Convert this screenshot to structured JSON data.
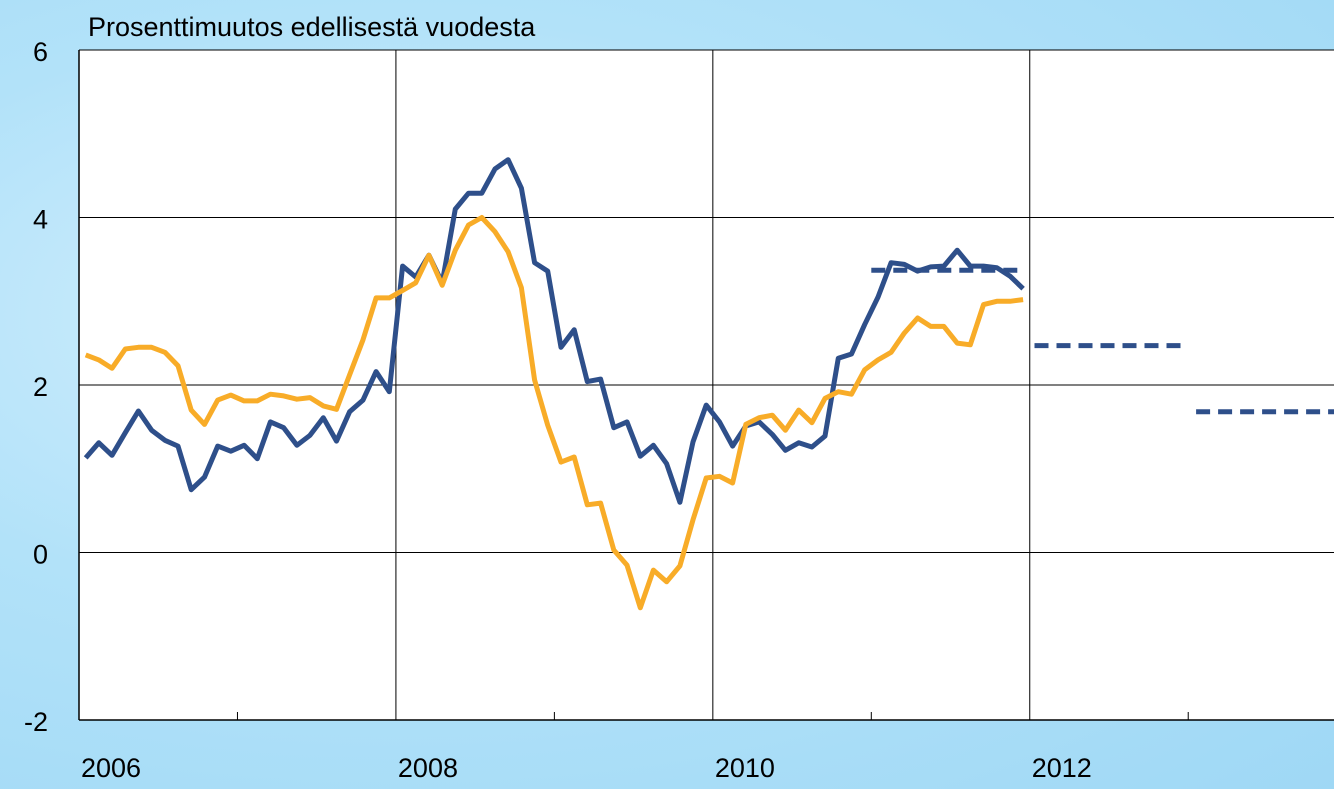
{
  "chart_data": {
    "type": "line",
    "title": "Prosenttimuutos edellisestä vuodesta",
    "x": [
      2006.042,
      2006.125,
      2006.208,
      2006.292,
      2006.375,
      2006.458,
      2006.542,
      2006.625,
      2006.708,
      2006.792,
      2006.875,
      2006.958,
      2007.042,
      2007.125,
      2007.208,
      2007.292,
      2007.375,
      2007.458,
      2007.542,
      2007.625,
      2007.708,
      2007.792,
      2007.875,
      2007.958,
      2008.042,
      2008.125,
      2008.208,
      2008.292,
      2008.375,
      2008.458,
      2008.542,
      2008.625,
      2008.708,
      2008.792,
      2008.875,
      2008.958,
      2009.042,
      2009.125,
      2009.208,
      2009.292,
      2009.375,
      2009.458,
      2009.542,
      2009.625,
      2009.708,
      2009.792,
      2009.875,
      2009.958,
      2010.042,
      2010.125,
      2010.208,
      2010.292,
      2010.375,
      2010.458,
      2010.542,
      2010.625,
      2010.708,
      2010.792,
      2010.875,
      2010.958,
      2011.042,
      2011.125,
      2011.208,
      2011.292,
      2011.375,
      2011.458,
      2011.542,
      2011.625,
      2011.708,
      2011.792,
      2011.875,
      2011.958
    ],
    "series": [
      {
        "color": "#2e4f8a",
        "style": "solid",
        "values": [
          1.13,
          1.31,
          1.16,
          1.43,
          1.69,
          1.46,
          1.34,
          1.27,
          0.75,
          0.9,
          1.27,
          1.21,
          1.28,
          1.12,
          1.56,
          1.49,
          1.28,
          1.4,
          1.61,
          1.33,
          1.68,
          1.82,
          2.16,
          1.92,
          3.42,
          3.29,
          3.55,
          3.22,
          4.1,
          4.29,
          4.29,
          4.58,
          4.69,
          4.35,
          3.46,
          3.36,
          2.45,
          2.66,
          2.04,
          2.07,
          1.49,
          1.56,
          1.15,
          1.28,
          1.06,
          0.6,
          1.32,
          1.76,
          1.56,
          1.27,
          1.51,
          1.56,
          1.41,
          1.22,
          1.31,
          1.26,
          1.39,
          2.32,
          2.37,
          2.72,
          3.05,
          3.46,
          3.44,
          3.36,
          3.41,
          3.42,
          3.61,
          3.42,
          3.42,
          3.4,
          3.3,
          3.15
        ]
      },
      {
        "color": "#f8ac28",
        "style": "solid",
        "values": [
          2.36,
          2.3,
          2.2,
          2.43,
          2.45,
          2.45,
          2.39,
          2.23,
          1.7,
          1.53,
          1.82,
          1.88,
          1.81,
          1.81,
          1.89,
          1.87,
          1.83,
          1.85,
          1.75,
          1.71,
          2.12,
          2.54,
          3.04,
          3.04,
          3.13,
          3.22,
          3.55,
          3.19,
          3.61,
          3.91,
          4.0,
          3.83,
          3.59,
          3.16,
          2.06,
          1.52,
          1.08,
          1.14,
          0.57,
          0.59,
          0.03,
          -0.15,
          -0.66,
          -0.21,
          -0.35,
          -0.16,
          0.39,
          0.89,
          0.91,
          0.83,
          1.53,
          1.61,
          1.64,
          1.46,
          1.7,
          1.55,
          1.84,
          1.92,
          1.89,
          2.18,
          2.3,
          2.39,
          2.62,
          2.8,
          2.7,
          2.7,
          2.5,
          2.48,
          2.96,
          3.0,
          3.0,
          3.02
        ]
      },
      {
        "color": "#2e4f8a",
        "style": "dashed",
        "x": [
          2011.0,
          2011.95
        ],
        "values": [
          3.37,
          3.37
        ]
      },
      {
        "color": "#2e4f8a",
        "style": "dashed",
        "x": [
          2012.03,
          2012.97
        ],
        "values": [
          2.47,
          2.47
        ]
      },
      {
        "color": "#2e4f8a",
        "style": "dashed",
        "x": [
          2013.05,
          2013.92
        ],
        "values": [
          1.68,
          1.68
        ]
      }
    ],
    "xlim": [
      2006,
      2013.92
    ],
    "xticks": [
      2006,
      2008,
      2010,
      2012
    ],
    "xminorticks": [
      2007,
      2009,
      2011,
      2013
    ],
    "ylim": [
      -2,
      6
    ],
    "yticks": [
      -2,
      0,
      2,
      4,
      6
    ],
    "grid": true
  }
}
